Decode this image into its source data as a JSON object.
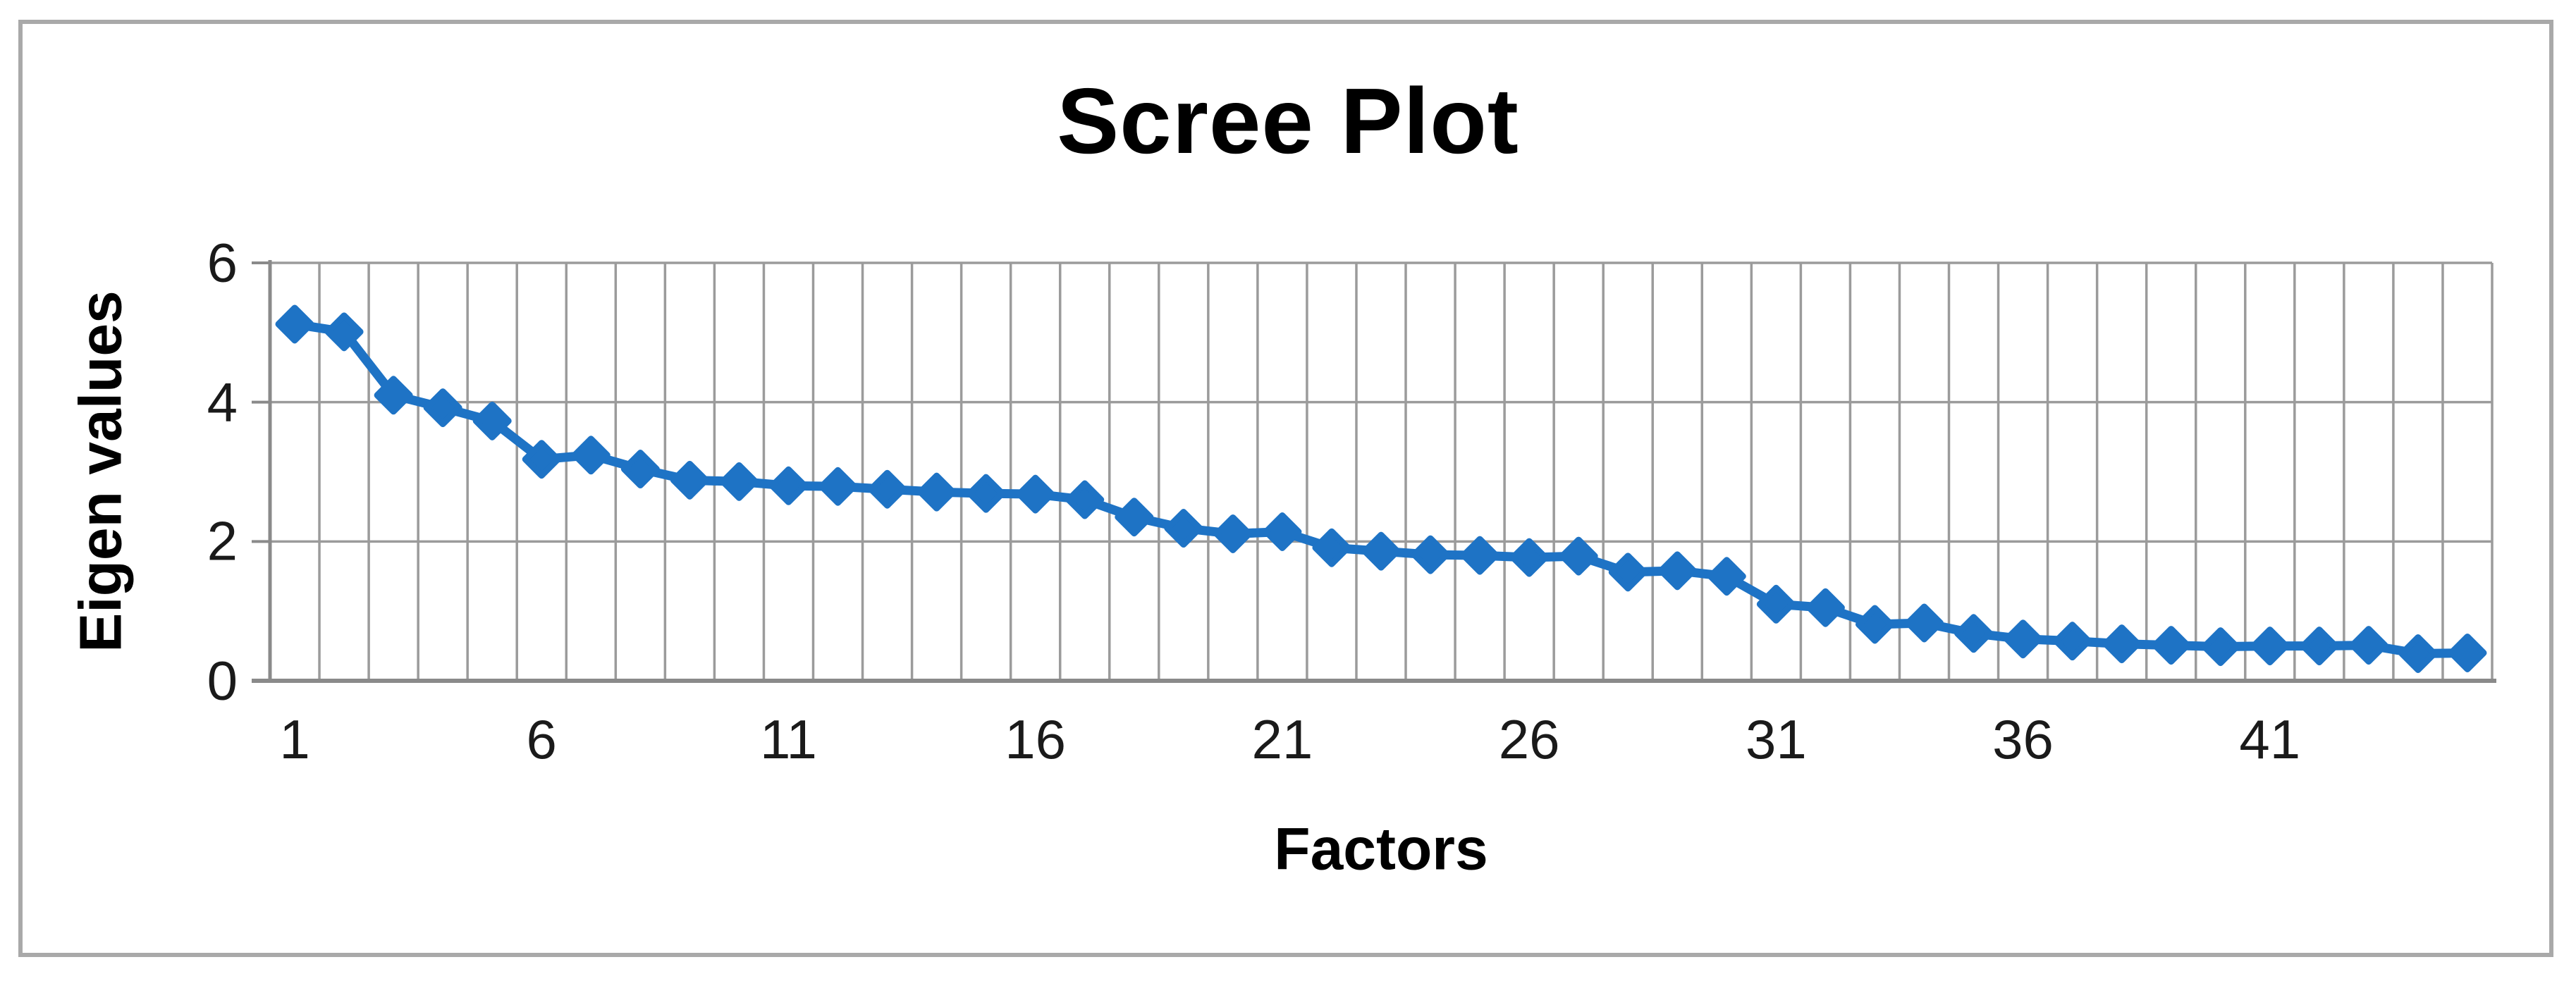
{
  "title": "Scree Plot",
  "axes": {
    "y_label": "Eigen values",
    "x_label": "Factors",
    "y_tick_labels": [
      "0",
      "2",
      "4",
      "6"
    ],
    "x_tick_labels": [
      "1",
      "6",
      "11",
      "16",
      "21",
      "26",
      "31",
      "36",
      "41"
    ]
  },
  "colors": {
    "series_blue": "#1e73c5",
    "gridline_gray": "#9b9b9b",
    "axis_gray": "#8a8a8a",
    "border_gray": "#a9a9a9",
    "text_black": "#000000",
    "background": "#ffffff"
  },
  "chart_data": {
    "type": "line",
    "title": "Scree Plot",
    "xlabel": "Factors",
    "ylabel": "Eigen values",
    "marker": "diamond",
    "legend": "none",
    "grid": "vertical per category + horizontal at major ticks",
    "ylim": [
      0,
      6
    ],
    "y_major_step": 2,
    "x_ticks_shown": [
      1,
      6,
      11,
      16,
      21,
      26,
      31,
      36,
      41
    ],
    "x": [
      1,
      2,
      3,
      4,
      5,
      6,
      7,
      8,
      9,
      10,
      11,
      12,
      13,
      14,
      15,
      16,
      17,
      18,
      19,
      20,
      21,
      22,
      23,
      24,
      25,
      26,
      27,
      28,
      29,
      30,
      31,
      32,
      33,
      34,
      35,
      36,
      37,
      38,
      39,
      40,
      41,
      42,
      43,
      44,
      45
    ],
    "values": [
      5.12,
      5.01,
      4.1,
      3.92,
      3.73,
      3.18,
      3.24,
      3.04,
      2.88,
      2.86,
      2.8,
      2.79,
      2.75,
      2.71,
      2.69,
      2.68,
      2.6,
      2.35,
      2.19,
      2.11,
      2.14,
      1.91,
      1.86,
      1.81,
      1.8,
      1.77,
      1.79,
      1.56,
      1.58,
      1.5,
      1.1,
      1.05,
      0.81,
      0.83,
      0.68,
      0.6,
      0.57,
      0.53,
      0.51,
      0.49,
      0.5,
      0.5,
      0.51,
      0.39,
      0.4
    ]
  }
}
